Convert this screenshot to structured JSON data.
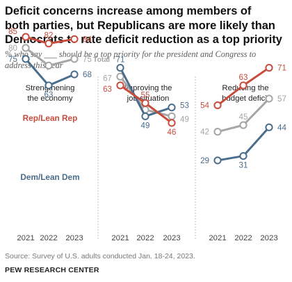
{
  "title_lines": [
    "Deficit concerns increase among members of",
    "both parties, but Republicans are more likely than",
    "Democrats to rate deficit reduction as a top priority"
  ],
  "subtitle_lines": [
    "% who say ___ should be a top priority for the president and Congress to",
    "address this year"
  ],
  "source": "Source: Survey of U.S. adults conducted Jan. 18-24, 2023.",
  "brand": "PEW RESEARCH CENTER",
  "colors": {
    "rep": "#c84c3d",
    "dem": "#4a6d8c",
    "total": "#a6a6a6",
    "divider": "#bdbdbd",
    "axis_label": "#444444"
  },
  "chart_data": [
    {
      "type": "line",
      "title_lines": [
        "Strengthening",
        "the economy"
      ],
      "categories": [
        "2021",
        "2022",
        "2023"
      ],
      "ylim": [
        0,
        100
      ],
      "series": [
        {
          "name": "Rep/Lean Rep",
          "key": "rep",
          "values": [
            85,
            82,
            84
          ]
        },
        {
          "name": "Total",
          "key": "total",
          "values": [
            80,
            72,
            75
          ]
        },
        {
          "name": "Dem/Lean Dem",
          "key": "dem",
          "values": [
            75,
            63,
            68
          ]
        }
      ]
    },
    {
      "type": "line",
      "title_lines": [
        "Improving the",
        "job situation"
      ],
      "categories": [
        "2021",
        "2022",
        "2023"
      ],
      "ylim": [
        0,
        100
      ],
      "series": [
        {
          "key": "rep",
          "values": [
            63,
            55,
            46
          ]
        },
        {
          "key": "total",
          "values": [
            67,
            52,
            49
          ]
        },
        {
          "key": "dem",
          "values": [
            71,
            49,
            53
          ]
        }
      ]
    },
    {
      "type": "line",
      "title_lines": [
        "Reducing the",
        "budget deficit"
      ],
      "categories": [
        "2021",
        "2022",
        "2023"
      ],
      "ylim": [
        0,
        100
      ],
      "series": [
        {
          "key": "rep",
          "values": [
            54,
            63,
            71
          ]
        },
        {
          "key": "total",
          "values": [
            42,
            45,
            57
          ]
        },
        {
          "key": "dem",
          "values": [
            29,
            31,
            44
          ]
        }
      ]
    }
  ]
}
